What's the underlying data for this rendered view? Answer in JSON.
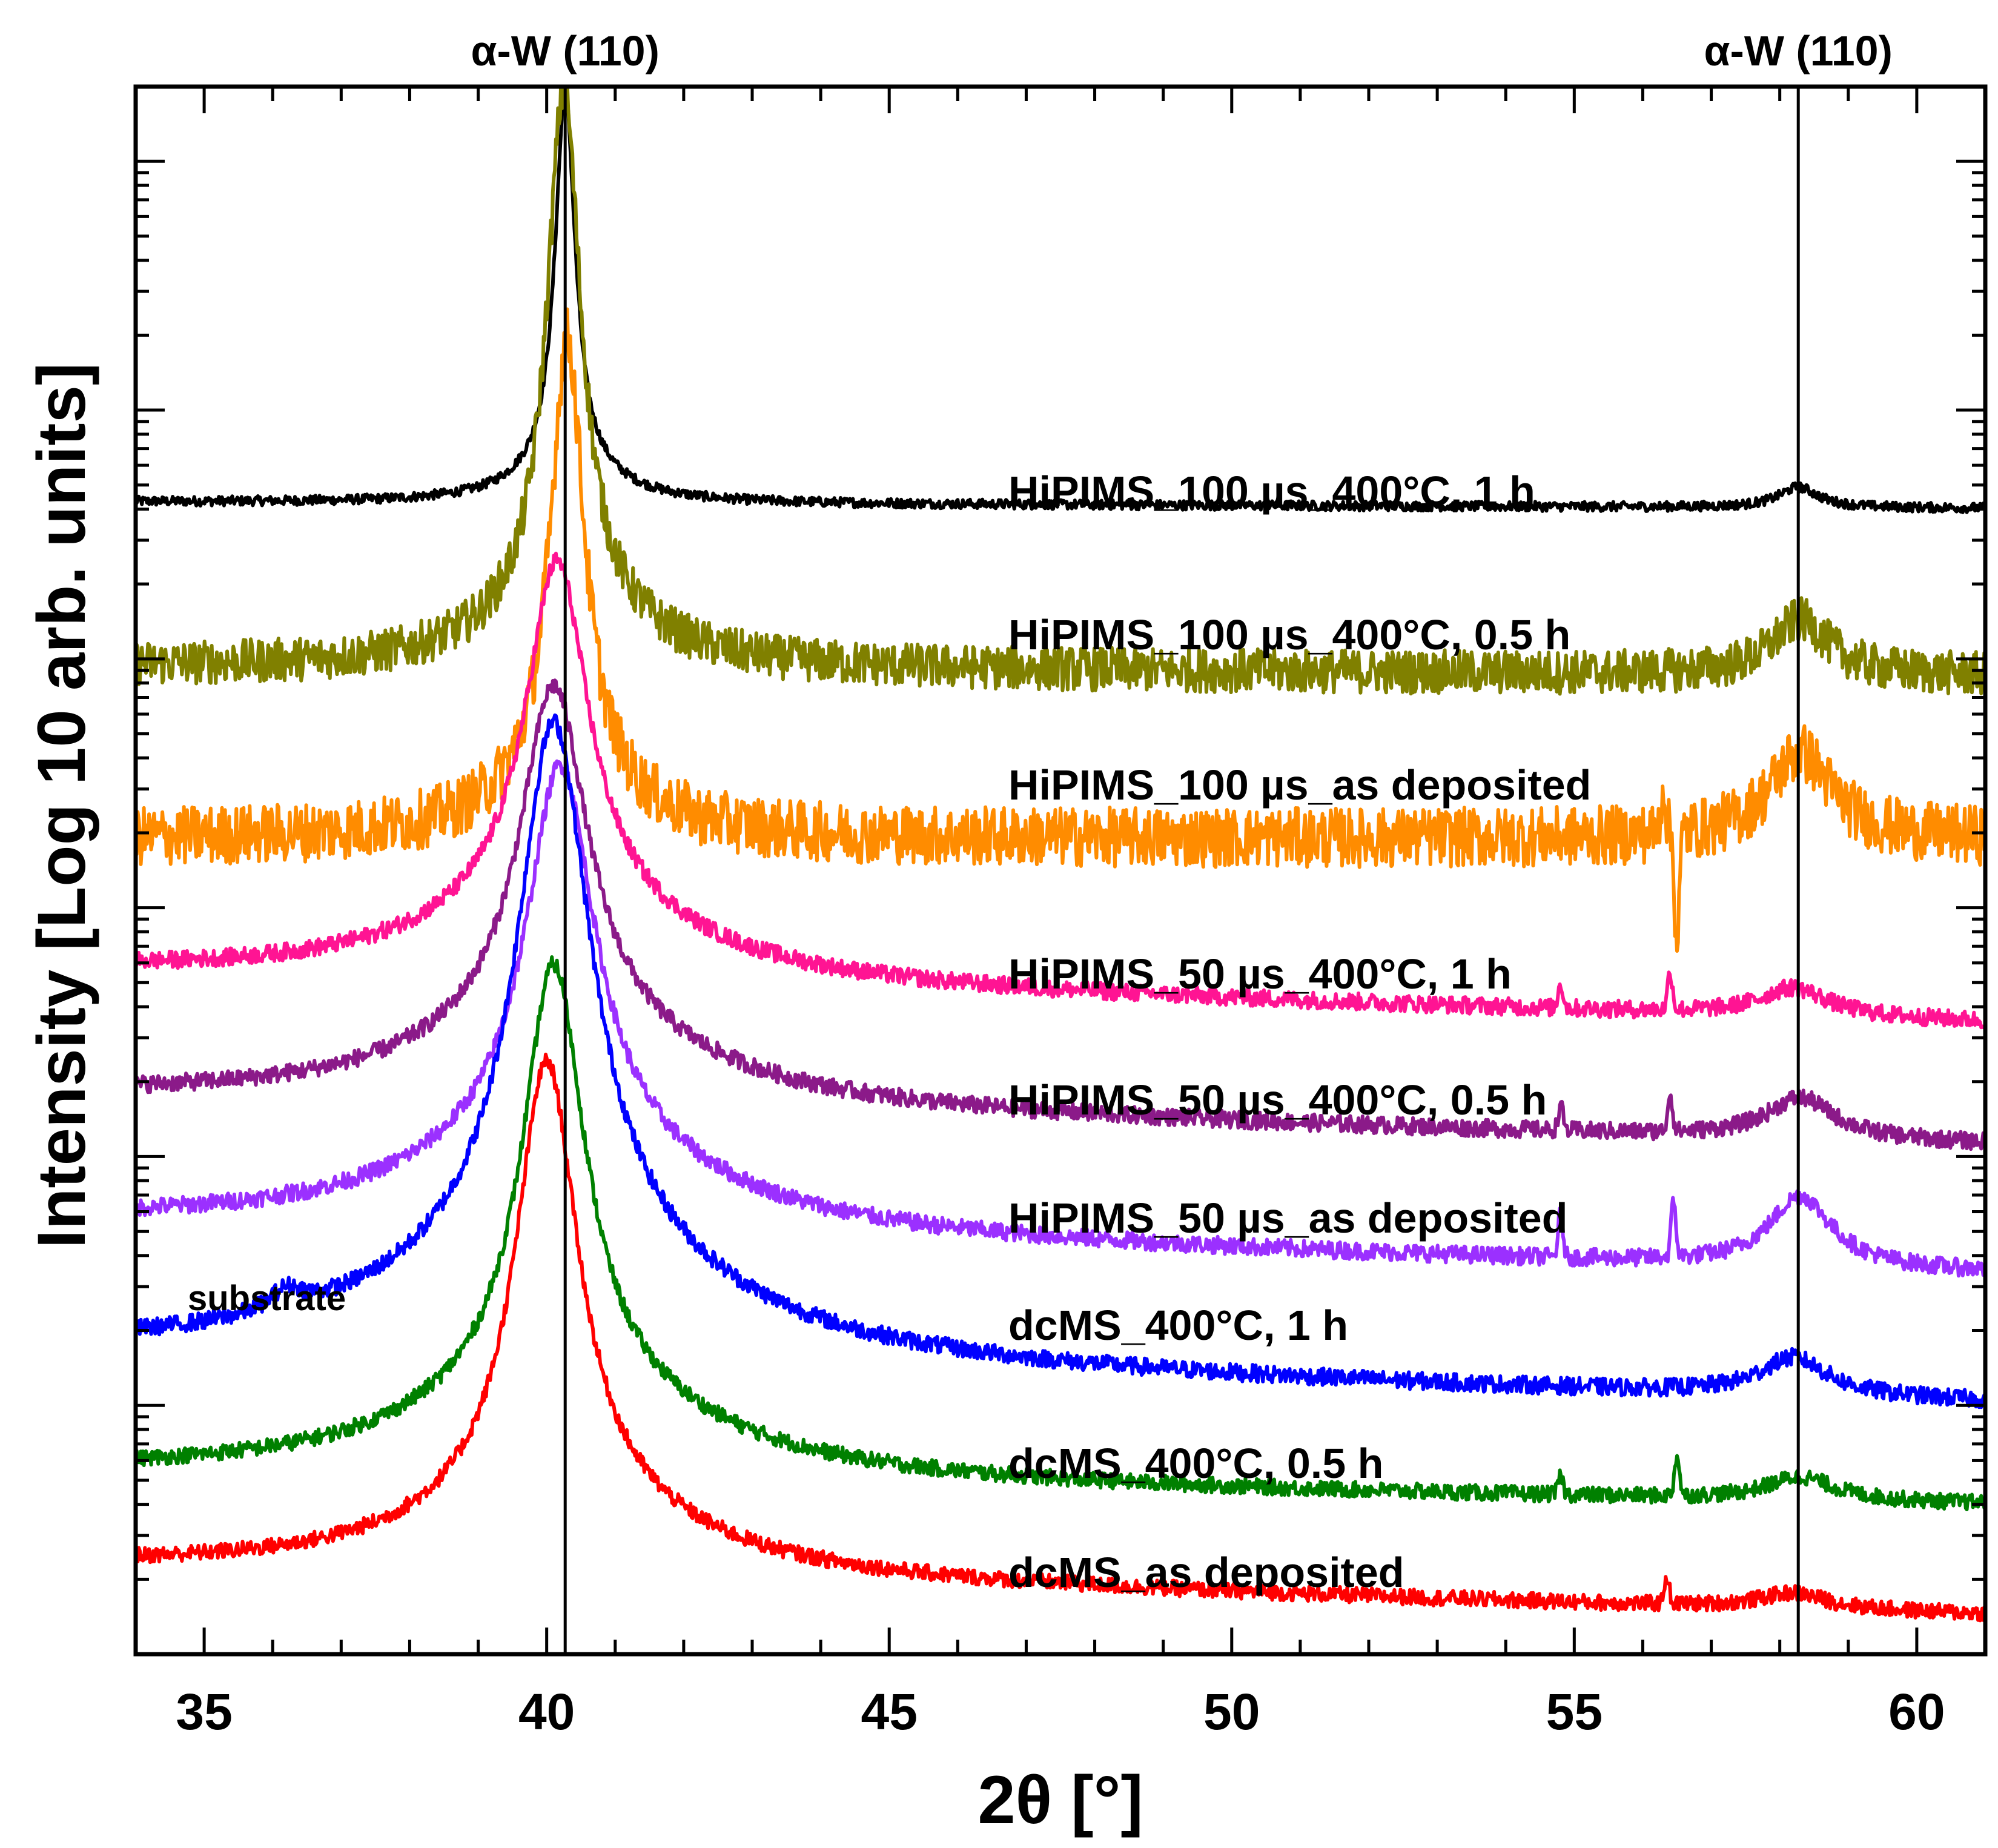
{
  "chart_data": {
    "type": "line",
    "title": "",
    "xlabel": "2θ [°]",
    "ylabel": "Intensity [Log 10 arb. units]",
    "xlim": [
      34,
      61
    ],
    "ylim": [
      0,
      100
    ],
    "xticks": [
      35,
      40,
      45,
      50,
      55,
      60
    ],
    "xtick_labels": [
      "35",
      "40",
      "45",
      "50",
      "55",
      "60"
    ],
    "y_scale": "log (arbitrary, stacked offsets)",
    "reference_lines": [
      {
        "x": 40.27,
        "label": "α-W (110)"
      },
      {
        "x": 58.27,
        "label": "α-W (110)"
      }
    ],
    "annotations": [
      {
        "text": "substrate",
        "x": 36.2
      }
    ],
    "series": [
      {
        "name": "HiPIMS_100 µs_400°C, 1 h",
        "color": "#000000",
        "baseline": 73.5,
        "noise": 0.3,
        "tilt": -0.4,
        "spikes": [],
        "peaks": [
          {
            "x": 40.27,
            "h": 24,
            "w": 0.18
          },
          {
            "x": 40.3,
            "h": 2.2,
            "w": 0.8
          },
          {
            "x": 58.27,
            "h": 1.3,
            "w": 0.35
          }
        ]
      },
      {
        "name": "HiPIMS_100 µs_400°C, 0.5 h",
        "color": "#808000",
        "baseline": 63.0,
        "noise": 1.4,
        "tilt": -0.6,
        "spikes": [],
        "peaks": [
          {
            "x": 40.25,
            "h": 33,
            "w": 0.3
          },
          {
            "x": 40.3,
            "h": 4.0,
            "w": 1.2
          },
          {
            "x": 58.3,
            "h": 3.5,
            "w": 0.5
          }
        ]
      },
      {
        "name": "HiPIMS_100 µs_as deposited",
        "color": "#FF8C00",
        "baseline": 52.0,
        "noise": 1.9,
        "tilt": 0.0,
        "spikes": [
          {
            "x": 56.5,
            "h": -7
          },
          {
            "x": 56.3,
            "h": 3
          }
        ],
        "peaks": [
          {
            "x": 40.3,
            "h": 29,
            "w": 0.3
          },
          {
            "x": 40.3,
            "h": 3.0,
            "w": 1.2
          },
          {
            "x": 58.3,
            "h": 5.5,
            "w": 0.55
          }
        ]
      },
      {
        "name": "HiPIMS_50 µs_400°C, 1 h",
        "color": "#FF1493",
        "baseline": 43.5,
        "noise": 0.55,
        "tilt": -3.2,
        "spikes": [
          {
            "x": 54.8,
            "h": 1.6
          },
          {
            "x": 56.4,
            "h": 2.4
          }
        ],
        "peaks": [
          {
            "x": 40.15,
            "h": 22,
            "w": 0.55
          },
          {
            "x": 40.2,
            "h": 5.0,
            "w": 2.2
          },
          {
            "x": 58.2,
            "h": 1.8,
            "w": 0.6
          }
        ]
      },
      {
        "name": "HiPIMS_50 µs_400°C, 0.5 h",
        "color": "#8B1A89",
        "baseline": 35.5,
        "noise": 0.55,
        "tilt": -3.0,
        "spikes": [
          {
            "x": 54.8,
            "h": 1.6
          },
          {
            "x": 56.4,
            "h": 2.4
          }
        ],
        "peaks": [
          {
            "x": 40.1,
            "h": 22,
            "w": 0.6
          },
          {
            "x": 40.2,
            "h": 5.0,
            "w": 2.4
          },
          {
            "x": 58.3,
            "h": 2.6,
            "w": 0.6
          }
        ]
      },
      {
        "name": "HiPIMS_50 µs_as deposited",
        "color": "#9B30FF",
        "baseline": 27.5,
        "noise": 0.55,
        "tilt": -3.2,
        "spikes": [
          {
            "x": 54.8,
            "h": 2.8
          },
          {
            "x": 56.45,
            "h": 3.5
          }
        ],
        "peaks": [
          {
            "x": 40.2,
            "h": 24,
            "w": 0.6
          },
          {
            "x": 40.2,
            "h": 6.0,
            "w": 2.4
          },
          {
            "x": 58.3,
            "h": 4.5,
            "w": 0.55
          }
        ]
      },
      {
        "name": "dcMS_400°C, 1 h",
        "color": "#0000FF",
        "baseline": 19.2,
        "noise": 0.55,
        "tilt": -3.2,
        "spikes": [],
        "peaks": [
          {
            "x": 40.1,
            "h": 33,
            "w": 0.65
          },
          {
            "x": 40.2,
            "h": 8.0,
            "w": 2.6
          },
          {
            "x": 36.2,
            "h": 1.3,
            "w": 0.3
          },
          {
            "x": 58.2,
            "h": 2.4,
            "w": 0.6
          }
        ]
      },
      {
        "name": "dcMS_400°C, 0.5 h",
        "color": "#008000",
        "baseline": 11.5,
        "noise": 0.5,
        "tilt": -2.0,
        "spikes": [
          {
            "x": 56.5,
            "h": 2.6
          },
          {
            "x": 54.8,
            "h": 1.2
          }
        ],
        "peaks": [
          {
            "x": 40.1,
            "h": 27,
            "w": 0.55
          },
          {
            "x": 40.2,
            "h": 6.0,
            "w": 2.4
          },
          {
            "x": 58.3,
            "h": 1.5,
            "w": 0.6
          }
        ]
      },
      {
        "name": "dcMS_as deposited",
        "color": "#FF0000",
        "baseline": 5.5,
        "noise": 0.5,
        "tilt": -3.0,
        "spikes": [
          {
            "x": 56.35,
            "h": 1.8
          }
        ],
        "peaks": [
          {
            "x": 40.0,
            "h": 28,
            "w": 0.55
          },
          {
            "x": 40.1,
            "h": 5.0,
            "w": 2.2
          },
          {
            "x": 58.2,
            "h": 1.0,
            "w": 0.6
          }
        ]
      }
    ]
  }
}
